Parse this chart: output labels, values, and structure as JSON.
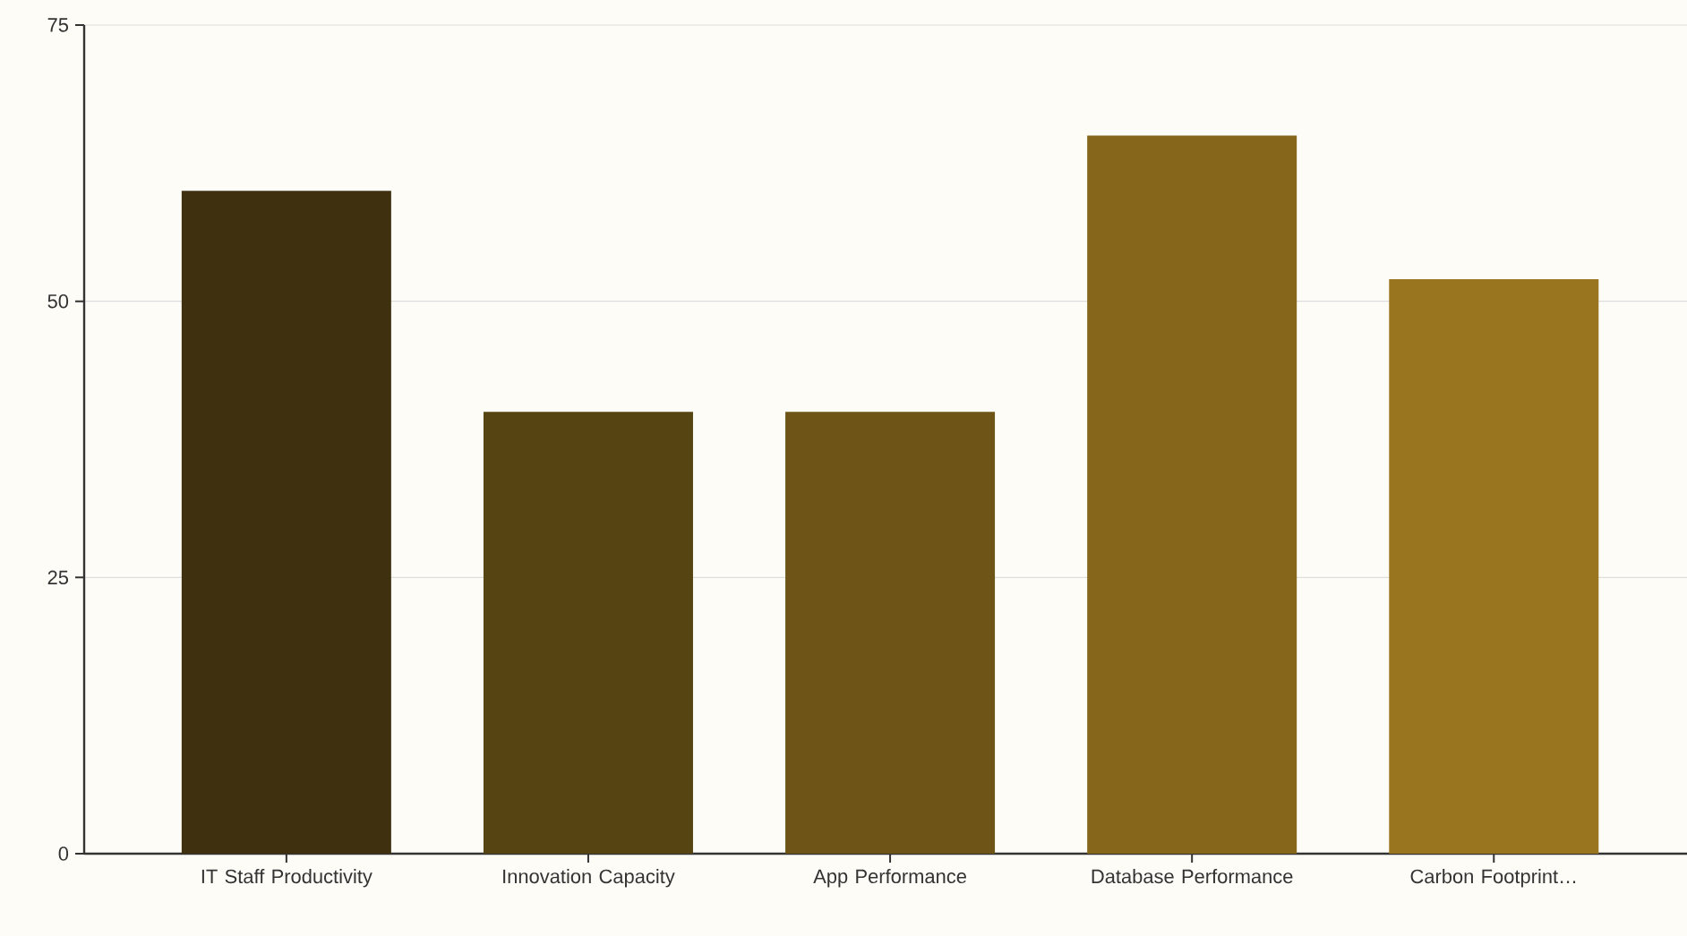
{
  "chart_data": {
    "type": "bar",
    "categories": [
      "IT Staff Productivity",
      "Innovation Capacity",
      "App Performance",
      "Database Performance",
      "Carbon Footprint…"
    ],
    "values": [
      60,
      40,
      40,
      65,
      52
    ],
    "colors": [
      "#3f3110",
      "#574413",
      "#6e5416",
      "#86661a",
      "#9a7520"
    ],
    "ylim": [
      0,
      75
    ],
    "yticks": [
      0,
      25,
      50,
      75
    ],
    "grid": "y"
  }
}
